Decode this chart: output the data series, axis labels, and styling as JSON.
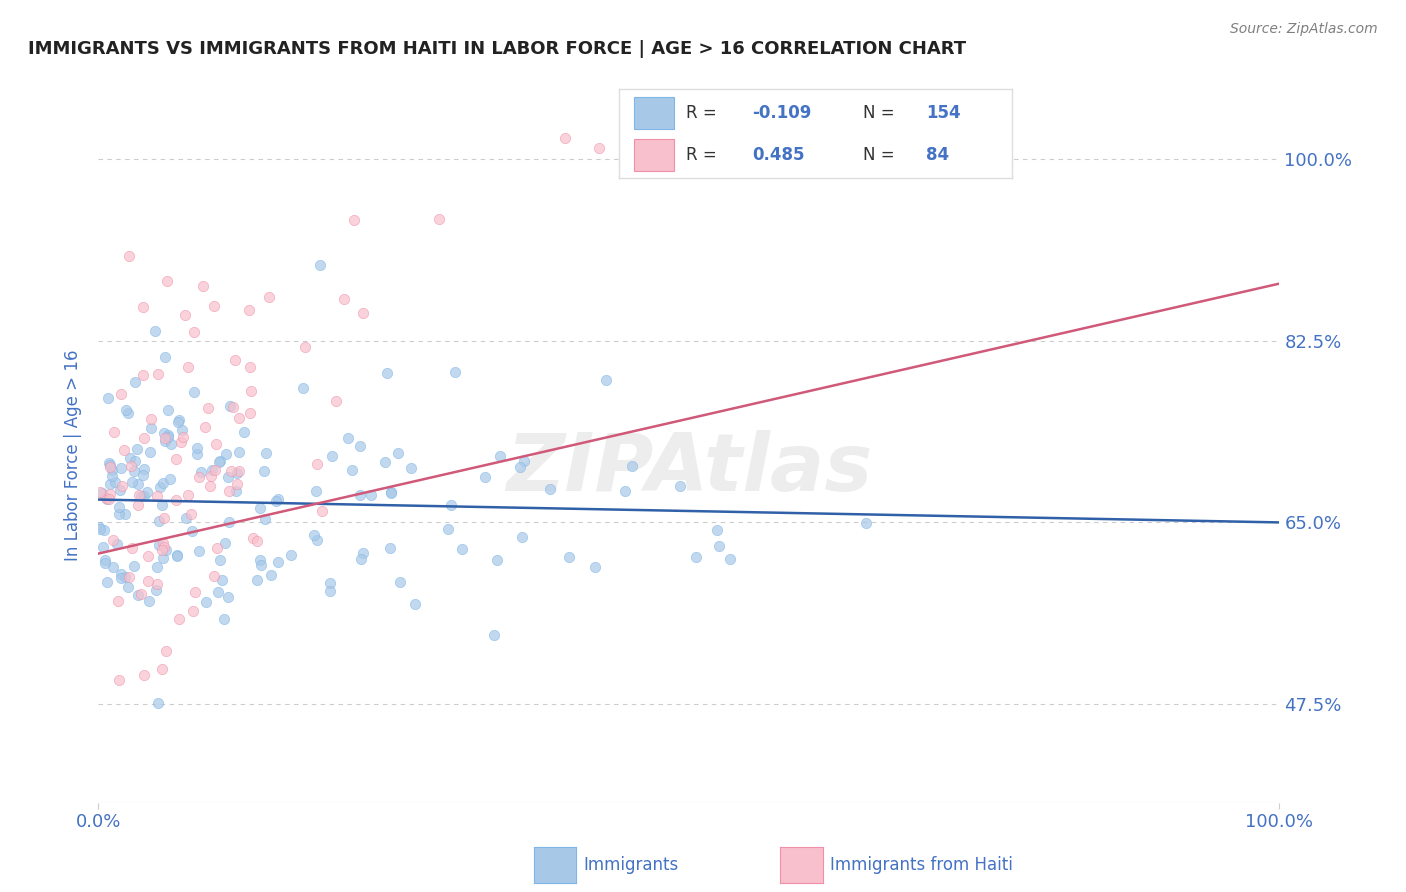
{
  "title": "IMMIGRANTS VS IMMIGRANTS FROM HAITI IN LABOR FORCE | AGE > 16 CORRELATION CHART",
  "source_text": "Source: ZipAtlas.com",
  "ylabel": "In Labor Force | Age > 16",
  "xlim": [
    0.0,
    1.0
  ],
  "ylim": [
    0.38,
    1.05
  ],
  "yticks": [
    0.475,
    0.65,
    0.825,
    1.0
  ],
  "ytick_labels": [
    "47.5%",
    "65.0%",
    "82.5%",
    "100.0%"
  ],
  "blue_color": "#A8C8E8",
  "blue_edge_color": "#7EB6E8",
  "blue_line_color": "#3060A8",
  "pink_color": "#F8C0CC",
  "pink_edge_color": "#F090A8",
  "pink_line_color": "#D05878",
  "label_color": "#4472C4",
  "R_blue": -0.109,
  "N_blue": 154,
  "R_pink": 0.485,
  "N_pink": 84,
  "background": "#FFFFFF",
  "grid_color": "#CCCCCC",
  "title_color": "#222222",
  "watermark": "ZIPAtlas",
  "watermark_color": "#CCCCCC",
  "blue_line_start_y": 0.672,
  "blue_line_end_y": 0.65,
  "pink_line_start_y": 0.62,
  "pink_line_end_y": 0.88
}
